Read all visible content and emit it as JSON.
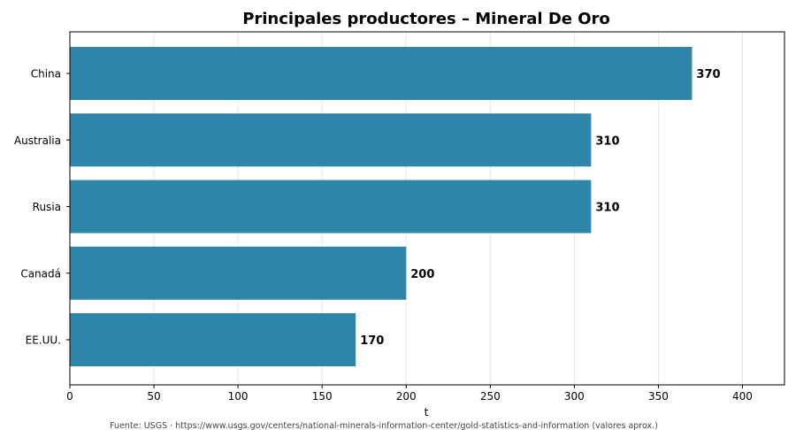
{
  "chart_data": {
    "type": "bar",
    "orientation": "horizontal",
    "title": "Principales productores – Mineral De Oro",
    "xlabel": "t",
    "ylabel": "",
    "categories": [
      "China",
      "Australia",
      "Rusia",
      "Canadá",
      "EE.UU."
    ],
    "values": [
      370,
      310,
      310,
      200,
      170
    ],
    "data_labels": [
      "370",
      "310",
      "310",
      "200",
      "170"
    ],
    "xlim": [
      0,
      425
    ],
    "xticks": [
      0,
      50,
      100,
      150,
      200,
      250,
      300,
      350,
      400
    ],
    "grid": "vertical",
    "legend": "none",
    "bar_color": "#2e86ab"
  },
  "source_note": "Fuente: USGS · https://www.usgs.gov/centers/national-minerals-information-center/gold-statistics-and-information (valores aprox.)"
}
